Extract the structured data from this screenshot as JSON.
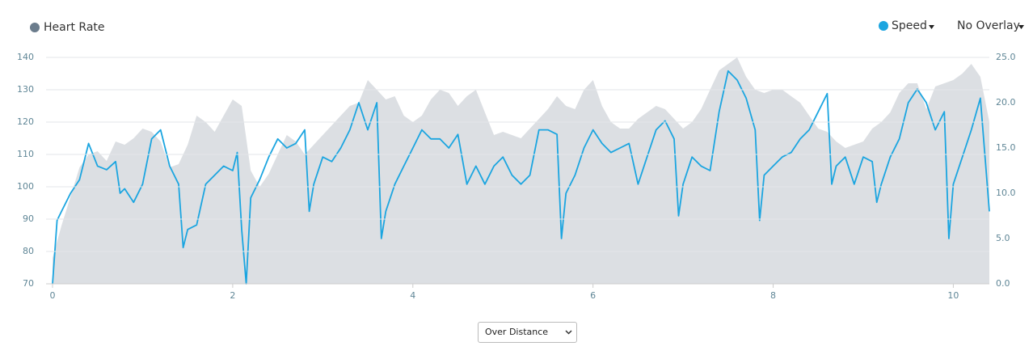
{
  "chart_data": {
    "type": "line",
    "series": [
      {
        "name": "Heart Rate",
        "color": "#6b7c8c",
        "fill": "#dcdfe3",
        "style": "area",
        "x": [
          0,
          0.1,
          0.2,
          0.3,
          0.4,
          0.5,
          0.6,
          0.7,
          0.8,
          0.9,
          1,
          1.1,
          1.2,
          1.3,
          1.4,
          1.5,
          1.6,
          1.7,
          1.8,
          1.9,
          2,
          2.1,
          2.2,
          2.3,
          2.4,
          2.5,
          2.6,
          2.7,
          2.8,
          2.9,
          3,
          3.1,
          3.2,
          3.3,
          3.4,
          3.5,
          3.6,
          3.7,
          3.8,
          3.9,
          4,
          4.1,
          4.2,
          4.3,
          4.4,
          4.5,
          4.6,
          4.7,
          4.8,
          4.9,
          5,
          5.1,
          5.2,
          5.3,
          5.4,
          5.5,
          5.6,
          5.7,
          5.8,
          5.9,
          6,
          6.1,
          6.2,
          6.3,
          6.4,
          6.5,
          6.6,
          6.7,
          6.8,
          6.9,
          7,
          7.1,
          7.2,
          7.3,
          7.4,
          7.5,
          7.6,
          7.7,
          7.8,
          7.9,
          8,
          8.1,
          8.2,
          8.3,
          8.4,
          8.5,
          8.6,
          8.7,
          8.8,
          8.9,
          9,
          9.1,
          9.2,
          9.3,
          9.4,
          9.5,
          9.6,
          9.7,
          9.8,
          9.9,
          10,
          10.1,
          10.2,
          10.3,
          10.4
        ],
        "values": [
          78,
          88,
          97,
          106,
          110,
          111,
          108,
          114,
          113,
          115,
          118,
          117,
          114,
          106,
          107,
          113,
          122,
          120,
          117,
          122,
          127,
          125,
          105,
          100,
          104,
          110,
          116,
          114,
          110,
          113,
          116,
          119,
          122,
          125,
          126,
          133,
          130,
          127,
          128,
          122,
          120,
          122,
          127,
          130,
          129,
          125,
          128,
          130,
          123,
          116,
          117,
          116,
          115,
          118,
          121,
          124,
          128,
          125,
          124,
          130,
          133,
          125,
          120,
          118,
          118,
          121,
          123,
          125,
          124,
          121,
          118,
          120,
          124,
          130,
          136,
          138,
          140,
          134,
          130,
          129,
          130,
          130,
          128,
          126,
          122,
          118,
          117,
          114,
          112,
          113,
          114,
          118,
          120,
          123,
          129,
          132,
          132,
          124,
          131,
          132,
          133,
          135,
          138,
          134,
          120
        ]
      },
      {
        "name": "Speed",
        "color": "#1ba5e0",
        "axis": "y2",
        "x": [
          0,
          0.05,
          0.1,
          0.2,
          0.3,
          0.4,
          0.5,
          0.6,
          0.7,
          0.75,
          0.8,
          0.9,
          1,
          1.1,
          1.2,
          1.3,
          1.4,
          1.45,
          1.5,
          1.6,
          1.7,
          1.8,
          1.9,
          2,
          2.05,
          2.1,
          2.15,
          2.2,
          2.3,
          2.4,
          2.5,
          2.6,
          2.7,
          2.8,
          2.85,
          2.9,
          3,
          3.1,
          3.2,
          3.3,
          3.4,
          3.5,
          3.6,
          3.65,
          3.7,
          3.8,
          3.9,
          4,
          4.1,
          4.2,
          4.3,
          4.4,
          4.5,
          4.6,
          4.7,
          4.8,
          4.9,
          5,
          5.1,
          5.2,
          5.3,
          5.4,
          5.5,
          5.6,
          5.65,
          5.7,
          5.8,
          5.9,
          6,
          6.1,
          6.2,
          6.3,
          6.4,
          6.5,
          6.6,
          6.7,
          6.8,
          6.9,
          6.95,
          7,
          7.1,
          7.2,
          7.3,
          7.4,
          7.5,
          7.6,
          7.7,
          7.8,
          7.85,
          7.9,
          8,
          8.1,
          8.2,
          8.3,
          8.4,
          8.5,
          8.6,
          8.65,
          8.7,
          8.8,
          8.9,
          9,
          9.1,
          9.15,
          9.2,
          9.3,
          9.4,
          9.5,
          9.6,
          9.7,
          9.8,
          9.9,
          9.95,
          10,
          10.1,
          10.2,
          10.3,
          10.4
        ],
        "values": [
          0,
          7,
          8,
          10,
          11.5,
          15.5,
          13,
          12.6,
          13.5,
          10,
          10.5,
          9,
          11,
          16,
          17,
          13,
          11,
          4,
          6,
          6.5,
          11,
          12,
          13,
          12.5,
          14.5,
          6,
          0,
          9.5,
          11.5,
          14,
          16,
          15,
          15.5,
          17,
          8,
          11,
          14,
          13.5,
          15,
          17,
          20,
          17,
          20,
          5,
          8,
          11,
          13,
          15,
          17,
          16,
          16,
          15,
          16.5,
          11,
          13,
          11,
          13,
          14,
          12,
          11,
          12,
          17,
          17,
          16.5,
          5,
          10,
          12,
          15,
          17,
          15.5,
          14.5,
          15,
          15.5,
          11,
          14,
          17,
          18,
          16,
          7.5,
          11,
          14,
          13,
          12.5,
          19,
          23.5,
          22.5,
          20.5,
          17,
          7,
          12,
          13,
          14,
          14.5,
          16,
          17,
          19,
          21,
          11,
          13,
          14,
          11,
          14,
          13.5,
          9,
          11,
          14,
          16,
          20,
          21.5,
          20,
          17,
          19,
          5,
          11,
          14,
          17,
          20.5,
          8
        ]
      }
    ],
    "xlim": [
      0,
      10.4
    ],
    "xticks": [
      0,
      2,
      4,
      6,
      8,
      10
    ],
    "ylim": [
      70,
      140
    ],
    "yticks": [
      70,
      80,
      90,
      100,
      110,
      120,
      130,
      140
    ],
    "y2lim": [
      0,
      25
    ],
    "y2ticks": [
      {
        "value": 0,
        "label": "0.0"
      },
      {
        "value": 5,
        "label": "5.0"
      },
      {
        "value": 10,
        "label": "10.0"
      },
      {
        "value": 15,
        "label": "15.0"
      },
      {
        "value": 20,
        "label": "20.0"
      },
      {
        "value": 25,
        "label": "25.0"
      }
    ],
    "grid": true,
    "overlay_label": "No Overlay",
    "dropdown": "Over Distance"
  }
}
